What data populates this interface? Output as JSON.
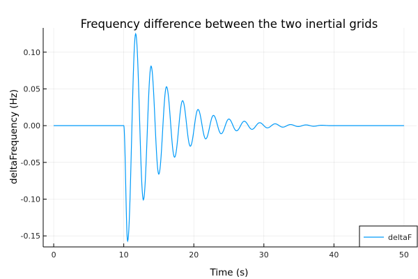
{
  "chart_data": {
    "type": "line",
    "title": "Frequency difference between the two inertial grids",
    "xlabel": "Time (s)",
    "ylabel": "deltaFrequency (Hz)",
    "xlim": [
      -1.5,
      51.8
    ],
    "ylim": [
      -0.165,
      0.133
    ],
    "xticks": [
      0,
      10,
      20,
      30,
      40,
      50
    ],
    "xtick_labels": [
      "0",
      "10",
      "20",
      "30",
      "40",
      "50"
    ],
    "yticks": [
      0.1,
      0.05,
      0.0,
      -0.05,
      -0.1,
      -0.15
    ],
    "ytick_labels": [
      "0.10",
      "0.05",
      "0.00",
      "-0.05",
      "-0.10",
      "-0.15"
    ],
    "grid": true,
    "legend": {
      "placement": "bottom-right",
      "entries": [
        "deltaF"
      ]
    },
    "series": [
      {
        "name": "deltaF",
        "color": "#009af9",
        "x": [
          0,
          10,
          10.55,
          11.7,
          12.8,
          13.9,
          15.0,
          16.1,
          17.25,
          18.4,
          19.5,
          20.6,
          21.7,
          22.8,
          23.9,
          25.0,
          26.1,
          27.2,
          28.3,
          29.4,
          30.5,
          31.6,
          32.7,
          33.8,
          34.9,
          36.0,
          37.1,
          38.2,
          39.5,
          50
        ],
        "y": [
          0,
          0,
          -0.157,
          0.125,
          -0.101,
          0.081,
          -0.066,
          0.053,
          -0.043,
          0.034,
          -0.028,
          0.022,
          -0.018,
          0.014,
          -0.011,
          0.009,
          -0.007,
          0.006,
          -0.005,
          0.004,
          -0.003,
          0.0025,
          -0.002,
          0.0015,
          -0.0012,
          0.001,
          -0.0008,
          0.0005,
          0,
          0
        ]
      }
    ]
  }
}
